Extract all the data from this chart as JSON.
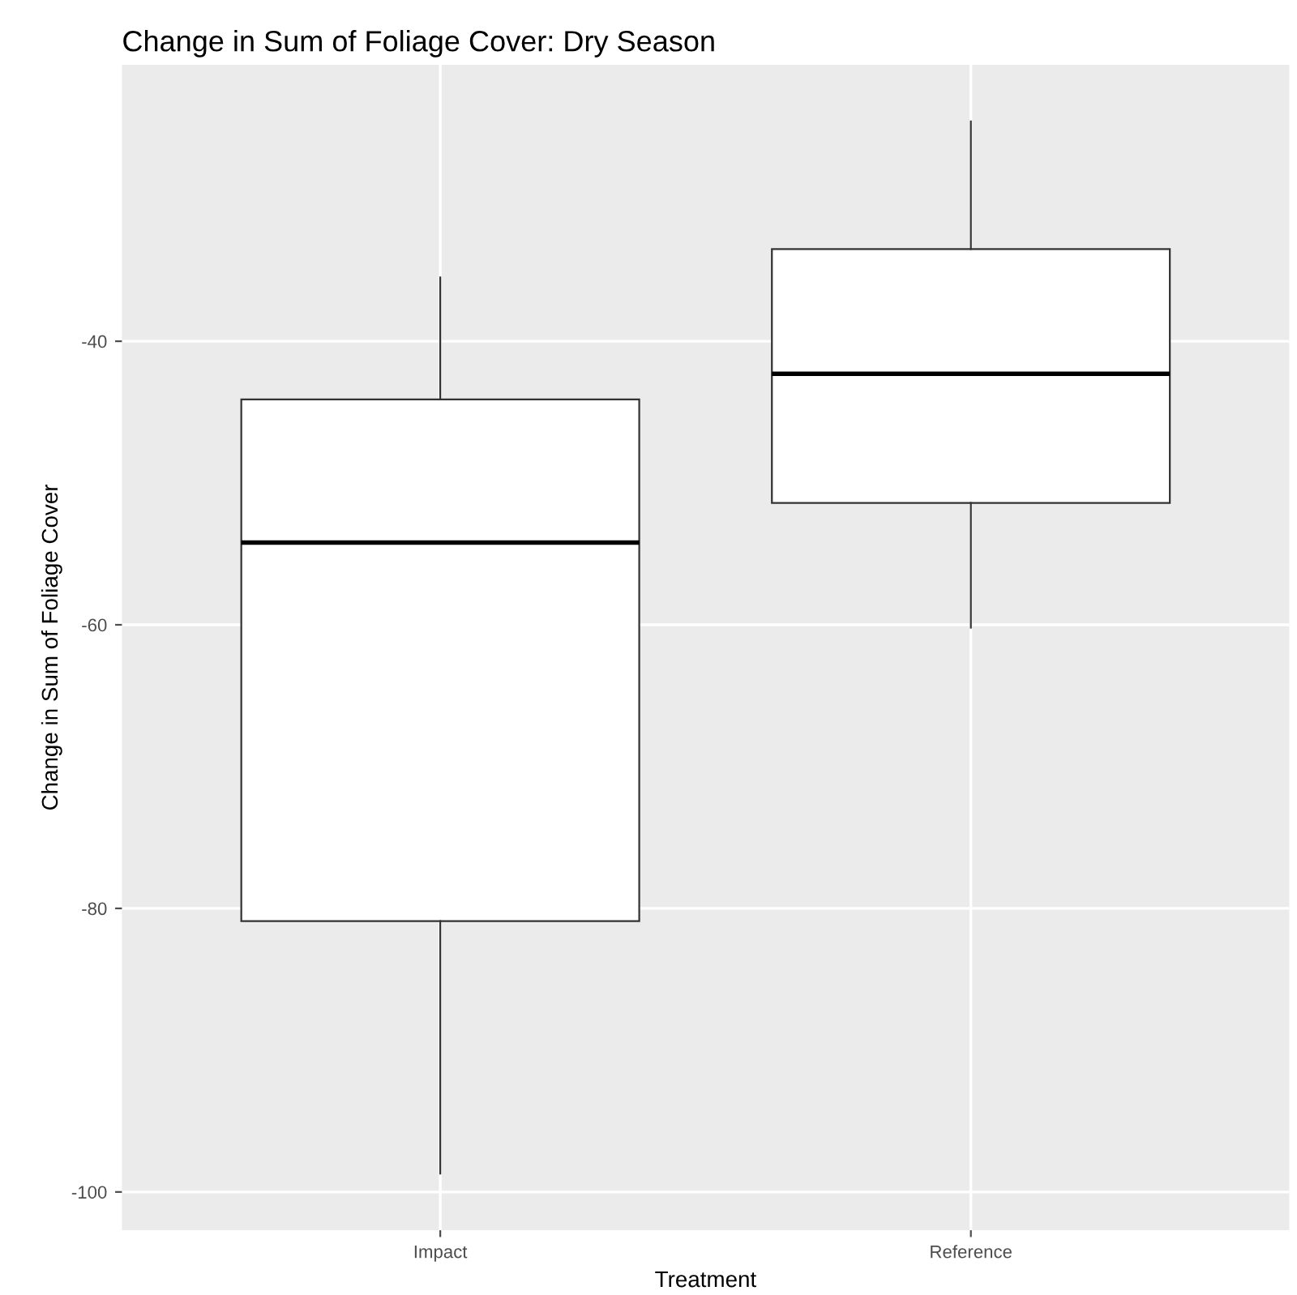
{
  "chart_data": {
    "type": "box",
    "title": "Change in Sum of Foliage Cover: Dry Season",
    "xlabel": "Treatment",
    "ylabel": "Change in Sum of Foliage Cover",
    "categories": [
      "Impact",
      "Reference"
    ],
    "boxes": [
      {
        "low": -98.7,
        "q1": -80.9,
        "median": -54.2,
        "q3": -44.1,
        "high": -35.5
      },
      {
        "low": -60.2,
        "q1": -51.4,
        "median": -42.3,
        "q3": -33.5,
        "high": -24.5
      }
    ],
    "ylim": [
      -102.7,
      -20.5
    ],
    "yticks": [
      -40,
      -60,
      -80,
      -100
    ],
    "grid": true
  }
}
